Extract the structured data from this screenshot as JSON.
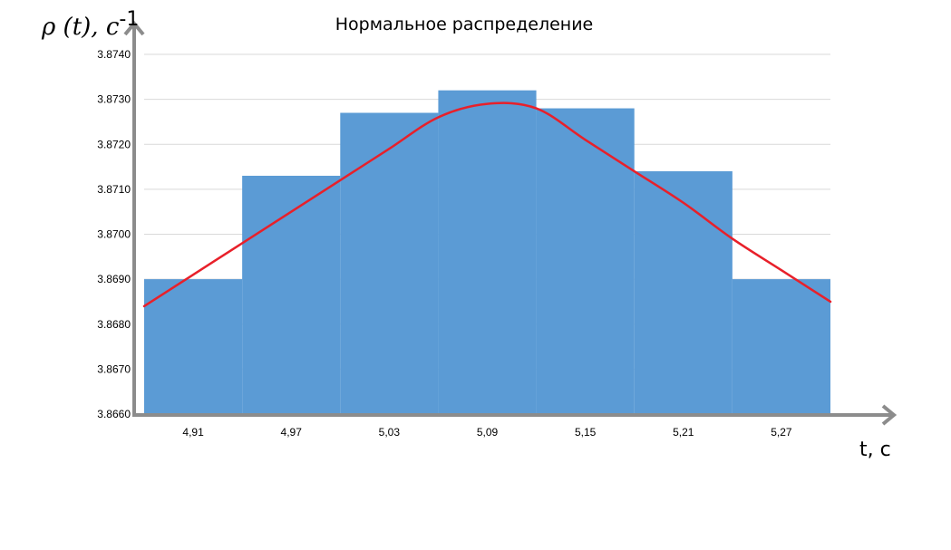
{
  "chart_data": {
    "type": "bar",
    "title": "Нормальное распределение",
    "xlabel": "t, c",
    "ylabel": {
      "main": "ρ (t), c",
      "superscript": "-1"
    },
    "categories": [
      "4,91",
      "4,97",
      "5,03",
      "5,09",
      "5,15",
      "5,21",
      "5,27"
    ],
    "series": [
      {
        "type": "bar",
        "values": [
          3.869,
          3.8713,
          3.8727,
          3.8732,
          3.8728,
          3.8714,
          3.869
        ],
        "color": "#5b9bd5"
      },
      {
        "type": "line",
        "x": [
          4.88,
          4.91,
          4.94,
          4.97,
          5.0,
          5.03,
          5.06,
          5.09,
          5.12,
          5.15,
          5.18,
          5.21,
          5.24,
          5.27,
          5.3
        ],
        "values": [
          3.8684,
          3.8691,
          3.8698,
          3.8705,
          3.8712,
          3.8719,
          3.8726,
          3.8729,
          3.8728,
          3.8721,
          3.8714,
          3.8707,
          3.8699,
          3.8692,
          3.8685
        ],
        "color": "#e8202a"
      }
    ],
    "yticks": [
      "3.8660",
      "3.8670",
      "3.8680",
      "3.8690",
      "3.8700",
      "3.8710",
      "3.8720",
      "3.8730",
      "3.8740"
    ],
    "ylim": [
      3.866,
      3.874
    ],
    "xlim": [
      4.88,
      5.3
    ],
    "grid": true,
    "legend": "none"
  }
}
